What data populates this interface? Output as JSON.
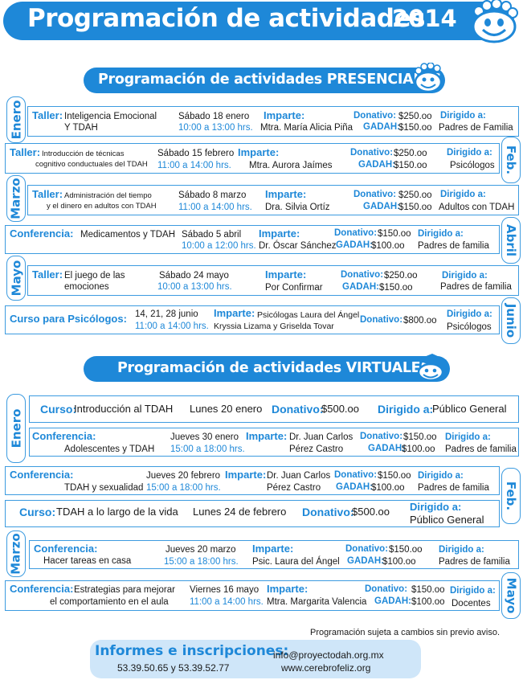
{
  "header": {
    "title": "Programación de actividades",
    "year": "2014"
  },
  "presenciales": {
    "title": "Programación de actividades PRESENCIALES",
    "events": [
      {
        "month": "Enero",
        "type": "Taller:",
        "desc1": "Inteligencia Emocional",
        "desc2": "Y TDAH",
        "date": "Sábado 18 enero",
        "time": "10:00 a 13:00 hrs.",
        "imparte_label": "Imparte:",
        "speaker1": "Mtra. María Alicia Piña",
        "donativo_label": "Donativo:",
        "donativo": "$250.oo",
        "gadah_label": "GADAH:",
        "gadah": "$150.oo",
        "dirigido_label": "Dirigido a:",
        "dirigido": "Padres de Familia"
      },
      {
        "month": "Feb.",
        "type": "Taller:",
        "desc1": "Introducción de técnicas",
        "desc2": "cognitivo conductuales del TDAH",
        "date": "Sábado 15 febrero",
        "time": "11:00 a 14:00 hrs.",
        "imparte_label": "Imparte:",
        "speaker1": "Mtra. Aurora Jaímes",
        "donativo_label": "Donativo:",
        "donativo": "$250.oo",
        "gadah_label": "GADAH:",
        "gadah": "$150.oo",
        "dirigido_label": "Dirigido a:",
        "dirigido": "Psicólogos"
      },
      {
        "month": "Marzo",
        "type": "Taller:",
        "desc1": "Administración del tiempo",
        "desc2": "y el dinero en adultos con TDAH",
        "date": "Sábado 8 marzo",
        "time": "11:00 a 14:00 hrs.",
        "imparte_label": "Imparte:",
        "speaker1": "Dra. Silvia Ortíz",
        "donativo_label": "Donativo:",
        "donativo": "$250.oo",
        "gadah_label": "GADAH:",
        "gadah": "$150.oo",
        "dirigido_label": "Dirigido a:",
        "dirigido": "Adultos con TDAH"
      },
      {
        "month": "Abril",
        "type": "Conferencia:",
        "desc1": "Medicamentos y TDAH",
        "date": "Sábado 5 abril",
        "time": "10:00 a 12:00 hrs.",
        "imparte_label": "Imparte:",
        "speaker1": "Dr. Óscar Sánchez",
        "donativo_label": "Donativo:",
        "donativo": "$150.oo",
        "gadah_label": "GADAH:",
        "gadah": "$100.oo",
        "dirigido_label": "Dirigido a:",
        "dirigido": "Padres de familia"
      },
      {
        "month": "Mayo",
        "type": "Taller:",
        "desc1": "El juego de las",
        "desc2": "emociones",
        "date": "Sábado 24 mayo",
        "time": "10:00 a 13:00 hrs.",
        "imparte_label": "Imparte:",
        "speaker1": "Por Confirmar",
        "donativo_label": "Donativo:",
        "donativo": "$250.oo",
        "gadah_label": "GADAH:",
        "gadah": "$150.oo",
        "dirigido_label": "Dirigido a:",
        "dirigido": "Padres de familia"
      },
      {
        "month": "Junio",
        "type": "Curso para Psicólogos:",
        "date": "14, 21, 28 junio",
        "time": "11:00 a 14:00 hrs.",
        "imparte_label": "Imparte:",
        "speaker1": "Psicólogas Laura del Ángel",
        "speaker2": "Kryssia Lizama y Griselda Tovar",
        "donativo_label": "Donativo:",
        "donativo": "$800.oo",
        "dirigido_label": "Dirigido a:",
        "dirigido": "Psicólogos"
      }
    ]
  },
  "virtuales": {
    "title": "Programación de actividades VIRTUALES",
    "events": [
      {
        "type": "Curso:",
        "desc1": "Introducción al TDAH",
        "date": "Lunes 20 enero",
        "donativo_label": "Donativo:",
        "donativo": "$500.oo",
        "dirigido_label": "Dirigido a:",
        "dirigido": "Público General"
      },
      {
        "type": "Conferencia:",
        "desc1": "Adolescentes y TDAH",
        "date": "Jueves 30 enero",
        "time": "15:00 a 18:00 hrs.",
        "imparte_label": "Imparte:",
        "speaker1": "Dr. Juan Carlos",
        "speaker2": "Pérez Castro",
        "donativo_label": "Donativo:",
        "donativo": "$150.oo",
        "gadah_label": "GADAH:",
        "gadah": "$100.oo",
        "dirigido_label": "Dirigido a:",
        "dirigido": "Padres de familia"
      },
      {
        "type": "Conferencia:",
        "desc1": "TDAH y sexualidad",
        "date": "Jueves 20 febrero",
        "time": "15:00 a 18:00 hrs.",
        "imparte_label": "Imparte:",
        "speaker1": "Dr. Juan Carlos",
        "speaker2": "Pérez Castro",
        "donativo_label": "Donativo:",
        "donativo": "$150.oo",
        "gadah_label": "GADAH:",
        "gadah": "$100.oo",
        "dirigido_label": "Dirigido a:",
        "dirigido": "Padres de familia"
      },
      {
        "type": "Curso:",
        "desc1": "TDAH a lo largo de la vida",
        "date": "Lunes 24 de febrero",
        "donativo_label": "Donativo:",
        "donativo": "$500.oo",
        "dirigido_label": "Dirigido a:",
        "dirigido": "Público General"
      },
      {
        "type": "Conferencia:",
        "desc1": "Hacer tareas en casa",
        "date": "Jueves 20 marzo",
        "time": "15:00 a 18:00 hrs.",
        "imparte_label": "Imparte:",
        "speaker1": "Psic. Laura del Ángel",
        "donativo_label": "Donativo:",
        "donativo": "$150.oo",
        "gadah_label": "GADAH:",
        "gadah": "$100.oo",
        "dirigido_label": "Dirigido a:",
        "dirigido": "Padres de familia"
      },
      {
        "type": "Conferencia:",
        "desc1": "Estrategias para mejorar",
        "desc2": "el comportamiento en el aula",
        "date": "Viernes 16 mayo",
        "time": "11:00 a 14:00 hrs.",
        "imparte_label": "Imparte:",
        "speaker1": "Mtra. Margarita Valencia",
        "donativo_label": "Donativo:",
        "donativo": "$150.oo",
        "gadah_label": "GADAH:",
        "gadah": "$100.oo",
        "dirigido_label": "Dirigido a:",
        "dirigido": "Docentes"
      }
    ],
    "months": [
      "Enero",
      "Feb.",
      "Marzo",
      "Mayo"
    ]
  },
  "note": "Programación sujeta a cambios sin previo aviso.",
  "footer": {
    "title": "Informes e inscripciones:",
    "phones": "53.39.50.65 y 53.39.52.77",
    "email": "info@proyectodah.org.mx",
    "web": "www.cerebrofeliz.org"
  },
  "colors": {
    "accent": "#1e88d8",
    "footer_bg": "#cfe6f9"
  }
}
